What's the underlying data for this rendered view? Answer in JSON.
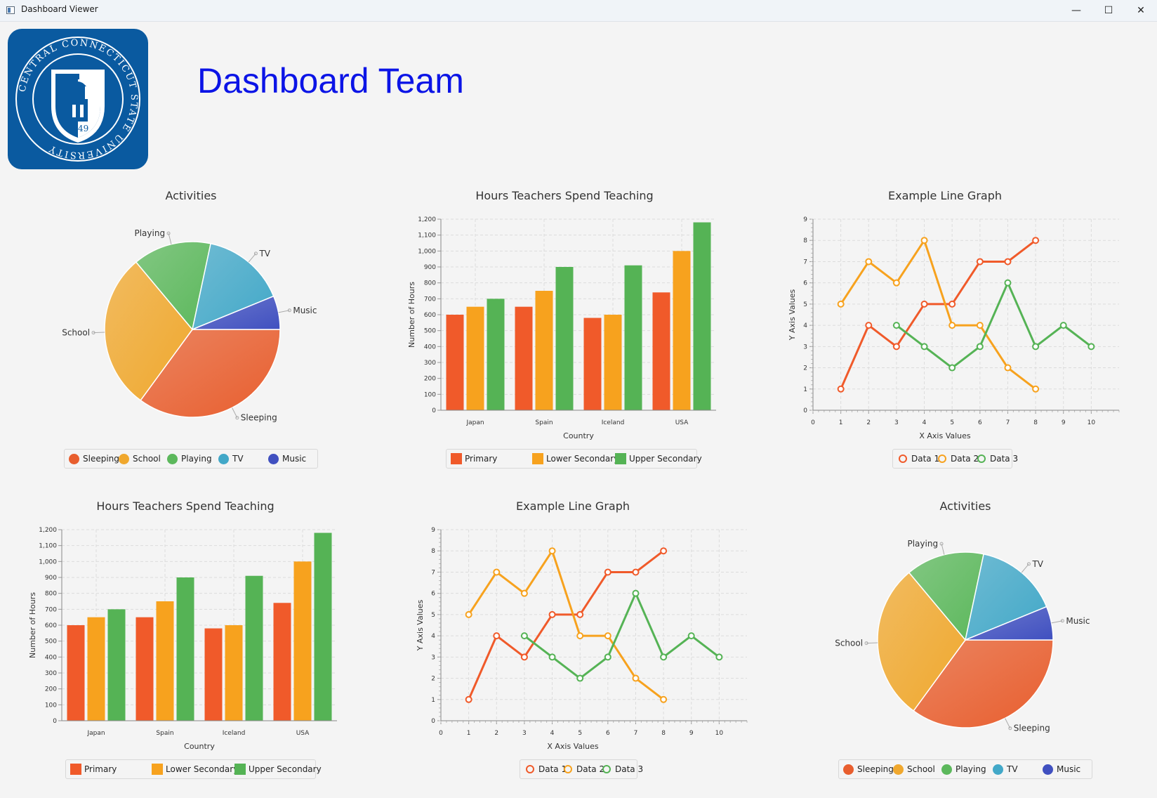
{
  "window": {
    "title": "Dashboard Viewer",
    "minimize_glyph": "—",
    "maximize_glyph": "☐",
    "close_glyph": "✕"
  },
  "header": {
    "title": "Dashboard Team",
    "logo": {
      "ring_text": "CENTRAL CONNECTICUT STATE UNIVERSITY",
      "year": "1849"
    }
  },
  "colors": {
    "red": "#f05a2a",
    "orange": "#f7a21e",
    "green": "#55b355",
    "cyan": "#3fa5c4",
    "blue": "#3f4fbf",
    "title_blue": "#0b14e6"
  },
  "pie": {
    "title": "Activities",
    "slices": [
      {
        "label": "Sleeping",
        "value": 34,
        "color": "#e85e2e"
      },
      {
        "label": "School",
        "value": 28,
        "color": "#f0a82e"
      },
      {
        "label": "Playing",
        "value": 14,
        "color": "#5cb85c"
      },
      {
        "label": "TV",
        "value": 15,
        "color": "#42a8c8"
      },
      {
        "label": "Music",
        "value": 6,
        "color": "#4050c0"
      }
    ]
  },
  "bar": {
    "title": "Hours Teachers Spend Teaching",
    "ylabel": "Number of Hours",
    "xlabel": "Country",
    "ylim": [
      0,
      1200
    ],
    "ystep": 100,
    "categories": [
      "Japan",
      "Spain",
      "Iceland",
      "USA"
    ],
    "series": [
      {
        "name": "Primary",
        "values": [
          600,
          650,
          580,
          740
        ],
        "color": "#f05a2a"
      },
      {
        "name": "Lower Secondary",
        "values": [
          650,
          750,
          600,
          1000
        ],
        "color": "#f7a21e"
      },
      {
        "name": "Upper Secondary",
        "values": [
          700,
          900,
          910,
          1180
        ],
        "color": "#55b355"
      }
    ]
  },
  "line": {
    "title": "Example Line Graph",
    "ylabel": "Y Axis Values",
    "xlabel": "X Axis Values",
    "xlim": [
      0,
      11
    ],
    "ylim": [
      0,
      9
    ],
    "xticks": [
      0,
      1,
      2,
      3,
      4,
      5,
      6,
      7,
      8,
      9,
      10
    ],
    "yticks": [
      0,
      1,
      2,
      3,
      4,
      5,
      6,
      7,
      8,
      9
    ],
    "series": [
      {
        "name": "Data 1",
        "color": "#f05a2a",
        "x": [
          1,
          2,
          3,
          4,
          5,
          6,
          7,
          8
        ],
        "y": [
          1,
          4,
          3,
          5,
          5,
          7,
          7,
          8
        ]
      },
      {
        "name": "Data 2",
        "color": "#f7a21e",
        "x": [
          1,
          2,
          3,
          4,
          5,
          6,
          7,
          8
        ],
        "y": [
          5,
          7,
          6,
          8,
          4,
          4,
          2,
          1
        ]
      },
      {
        "name": "Data 3",
        "color": "#55b355",
        "x": [
          3,
          4,
          5,
          6,
          7,
          8,
          9,
          10
        ],
        "y": [
          4,
          3,
          2,
          3,
          6,
          3,
          4,
          3
        ]
      }
    ]
  },
  "chart_data": [
    {
      "type": "pie",
      "title": "Activities",
      "labels": [
        "Sleeping",
        "School",
        "Playing",
        "TV",
        "Music"
      ],
      "values": [
        34,
        28,
        14,
        15,
        6
      ]
    },
    {
      "type": "bar",
      "title": "Hours Teachers Spend Teaching",
      "categories": [
        "Japan",
        "Spain",
        "Iceland",
        "USA"
      ],
      "series": [
        {
          "name": "Primary",
          "values": [
            600,
            650,
            580,
            740
          ]
        },
        {
          "name": "Lower Secondary",
          "values": [
            650,
            750,
            600,
            1000
          ]
        },
        {
          "name": "Upper Secondary",
          "values": [
            700,
            900,
            910,
            1180
          ]
        }
      ],
      "xlabel": "Country",
      "ylabel": "Number of Hours",
      "ylim": [
        0,
        1200
      ]
    },
    {
      "type": "line",
      "title": "Example Line Graph",
      "series": [
        {
          "name": "Data 1",
          "x": [
            1,
            2,
            3,
            4,
            5,
            6,
            7,
            8
          ],
          "y": [
            1,
            4,
            3,
            5,
            5,
            7,
            7,
            8
          ]
        },
        {
          "name": "Data 2",
          "x": [
            1,
            2,
            3,
            4,
            5,
            6,
            7,
            8
          ],
          "y": [
            5,
            7,
            6,
            8,
            4,
            4,
            2,
            1
          ]
        },
        {
          "name": "Data 3",
          "x": [
            3,
            4,
            5,
            6,
            7,
            8,
            9,
            10
          ],
          "y": [
            4,
            3,
            2,
            3,
            6,
            3,
            4,
            3
          ]
        }
      ],
      "xlabel": "X Axis Values",
      "ylabel": "Y Axis Values",
      "xlim": [
        0,
        11
      ],
      "ylim": [
        0,
        9
      ]
    },
    {
      "type": "bar",
      "title": "Hours Teachers Spend Teaching",
      "categories": [
        "Japan",
        "Spain",
        "Iceland",
        "USA"
      ],
      "series": [
        {
          "name": "Primary",
          "values": [
            600,
            650,
            580,
            740
          ]
        },
        {
          "name": "Lower Secondary",
          "values": [
            650,
            750,
            600,
            1000
          ]
        },
        {
          "name": "Upper Secondary",
          "values": [
            700,
            900,
            910,
            1180
          ]
        }
      ],
      "xlabel": "Country",
      "ylabel": "Number of Hours",
      "ylim": [
        0,
        1200
      ]
    },
    {
      "type": "line",
      "title": "Example Line Graph",
      "series": [
        {
          "name": "Data 1",
          "x": [
            1,
            2,
            3,
            4,
            5,
            6,
            7,
            8
          ],
          "y": [
            1,
            4,
            3,
            5,
            5,
            7,
            7,
            8
          ]
        },
        {
          "name": "Data 2",
          "x": [
            1,
            2,
            3,
            4,
            5,
            6,
            7,
            8
          ],
          "y": [
            5,
            7,
            6,
            8,
            4,
            4,
            2,
            1
          ]
        },
        {
          "name": "Data 3",
          "x": [
            3,
            4,
            5,
            6,
            7,
            8,
            9,
            10
          ],
          "y": [
            4,
            3,
            2,
            3,
            6,
            3,
            4,
            3
          ]
        }
      ],
      "xlabel": "X Axis Values",
      "ylabel": "Y Axis Values",
      "xlim": [
        0,
        11
      ],
      "ylim": [
        0,
        9
      ]
    },
    {
      "type": "pie",
      "title": "Activities",
      "labels": [
        "Sleeping",
        "School",
        "Playing",
        "TV",
        "Music"
      ],
      "values": [
        34,
        28,
        14,
        15,
        6
      ]
    }
  ]
}
